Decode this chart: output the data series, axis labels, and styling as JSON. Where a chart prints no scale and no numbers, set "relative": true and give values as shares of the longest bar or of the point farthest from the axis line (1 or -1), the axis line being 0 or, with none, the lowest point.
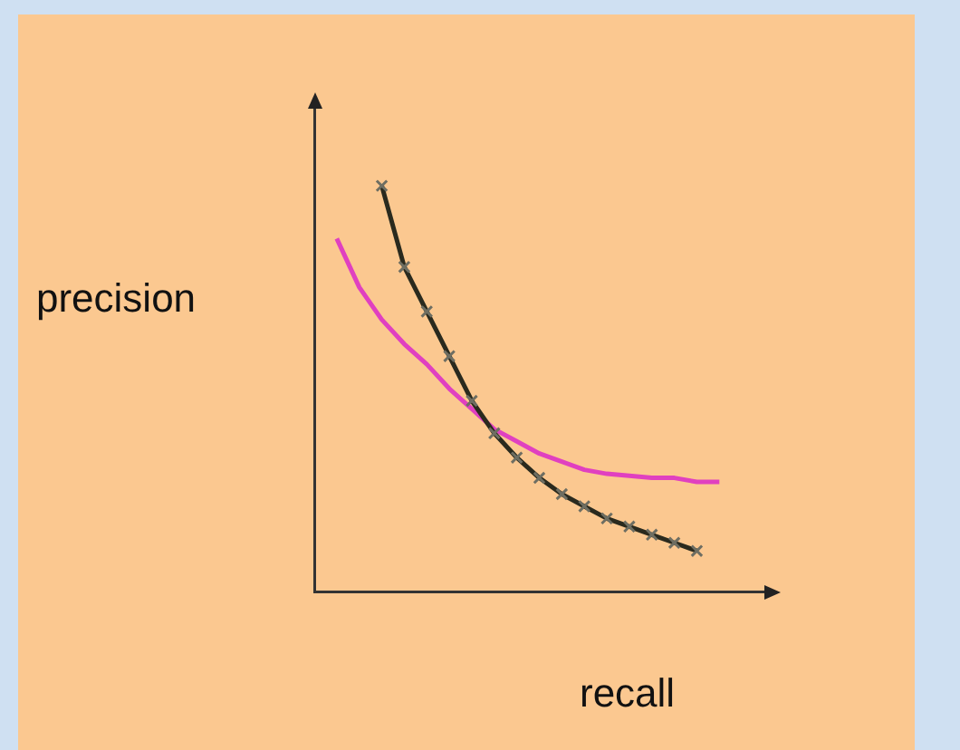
{
  "chart_data": {
    "type": "line",
    "relative": true,
    "xlabel": "recall",
    "ylabel": "precision",
    "legend": false,
    "grid": false,
    "categories": [
      null,
      null,
      null,
      null,
      null,
      null,
      null,
      null,
      null,
      null,
      null,
      null,
      null,
      null,
      null,
      null,
      null,
      null,
      null,
      null,
      null
    ],
    "series": [
      {
        "color": "#2a2a1e",
        "marker": "cross",
        "values": [
          null,
          null,
          null,
          1,
          0.8,
          0.69,
          0.58,
          0.47,
          0.39,
          0.33,
          0.28,
          0.24,
          0.21,
          0.18,
          0.16,
          0.14,
          0.12,
          0.1,
          null,
          null,
          null
        ]
      },
      {
        "color": "#e040c0",
        "values": [
          null,
          0.87,
          0.75,
          0.67,
          0.61,
          0.56,
          0.5,
          0.45,
          0.4,
          0.37,
          0.34,
          0.32,
          0.3,
          0.29,
          0.285,
          0.28,
          0.28,
          0.27,
          0.27,
          null,
          null
        ]
      }
    ]
  }
}
